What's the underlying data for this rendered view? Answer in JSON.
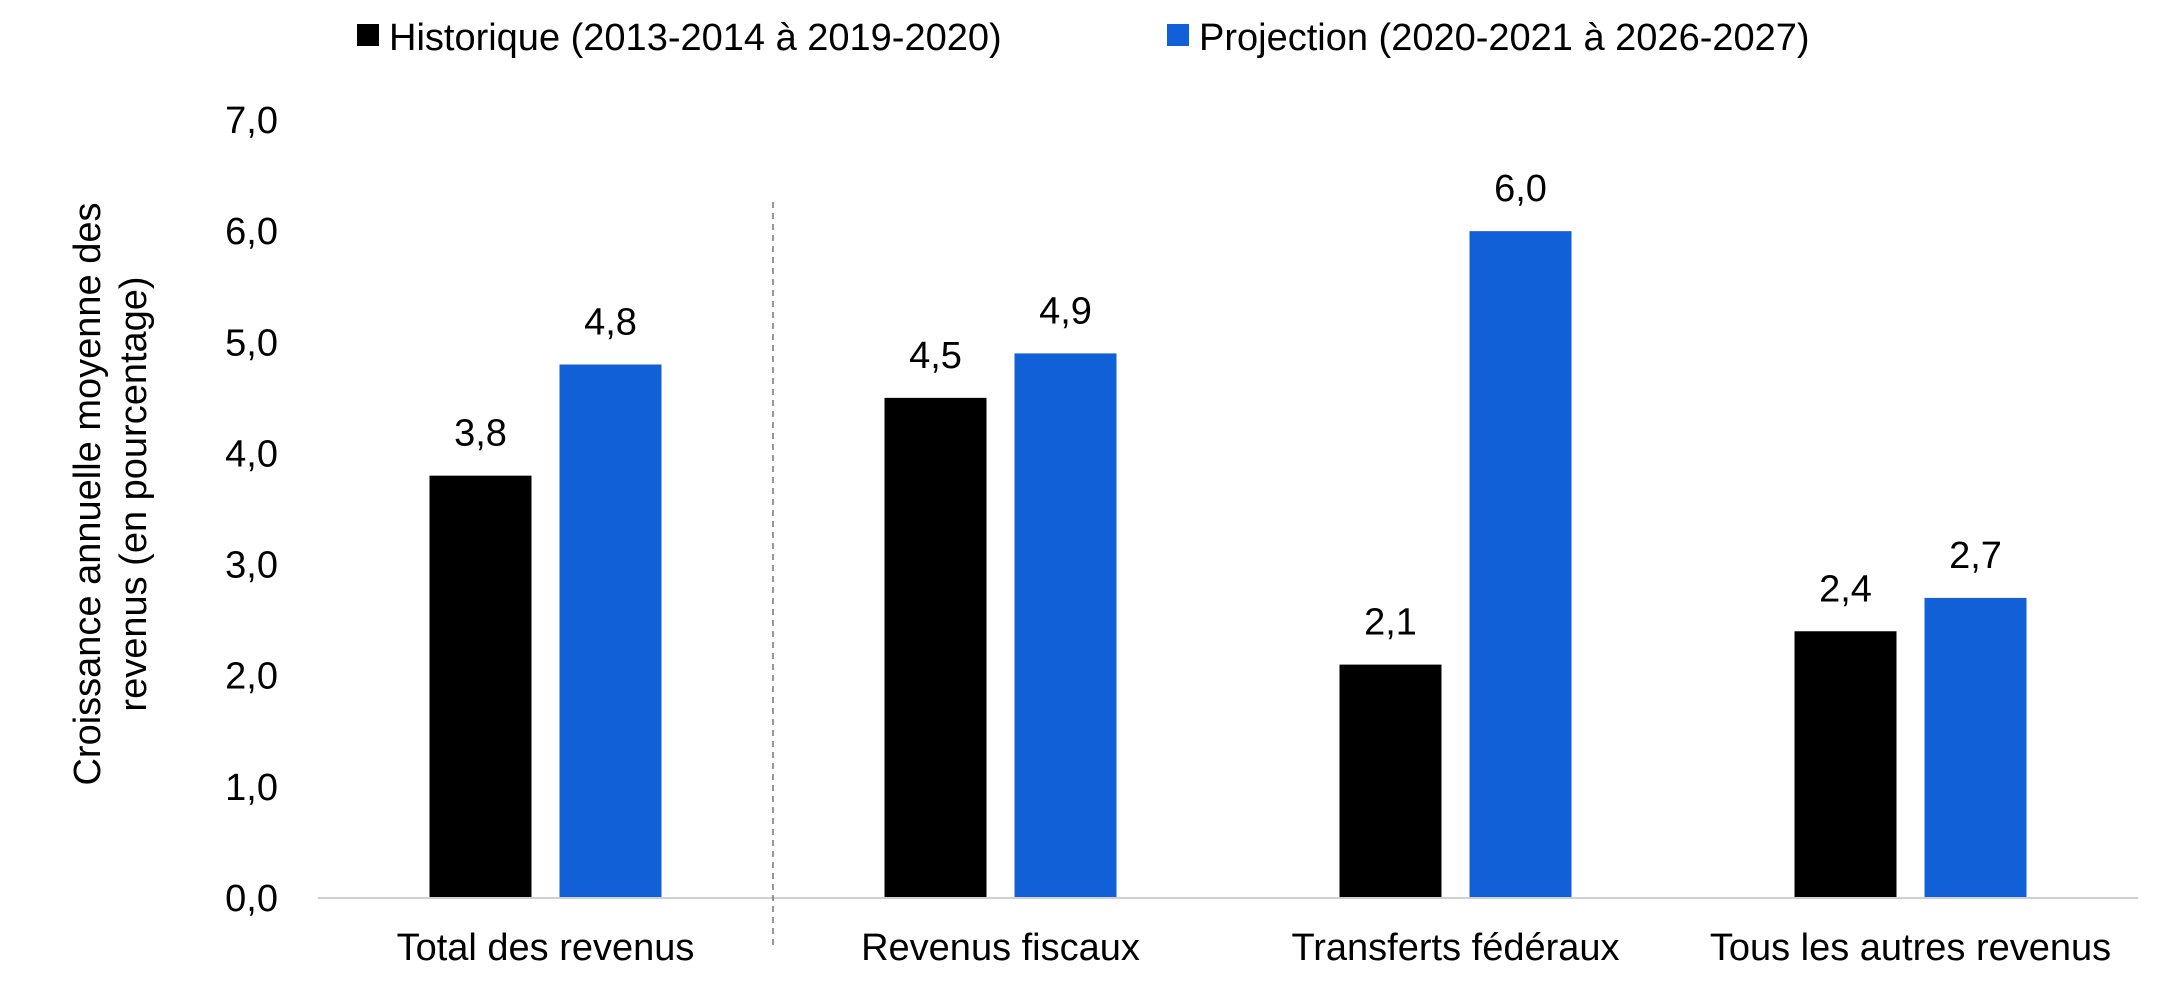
{
  "chart_data": {
    "type": "bar",
    "title": "",
    "xlabel": "",
    "ylabel_lines": [
      "Croissance annuelle moyenne des",
      "revenus (en pourcentage)"
    ],
    "ylim": [
      0,
      7
    ],
    "ytick_step": 1,
    "yticks": [
      "0,0",
      "1,0",
      "2,0",
      "3,0",
      "4,0",
      "5,0",
      "6,0",
      "7,0"
    ],
    "grid": false,
    "legend_position": "top",
    "categories": [
      "Total des revenus",
      "Revenus fiscaux",
      "Transferts fédéraux",
      "Tous les autres revenus"
    ],
    "series": [
      {
        "name": "Historique (2013-2014 à 2019-2020)",
        "color": "#000000",
        "values": [
          3.8,
          4.5,
          2.1,
          2.4
        ],
        "labels": [
          "3,8",
          "4,5",
          "2,1",
          "2,4"
        ]
      },
      {
        "name": "Projection (2020-2021 à 2026-2027)",
        "color": "#1260D7",
        "values": [
          4.8,
          4.9,
          6.0,
          2.7
        ],
        "labels": [
          "4,8",
          "4,9",
          "6,0",
          "2,7"
        ]
      }
    ],
    "separator_after_category": 0
  }
}
